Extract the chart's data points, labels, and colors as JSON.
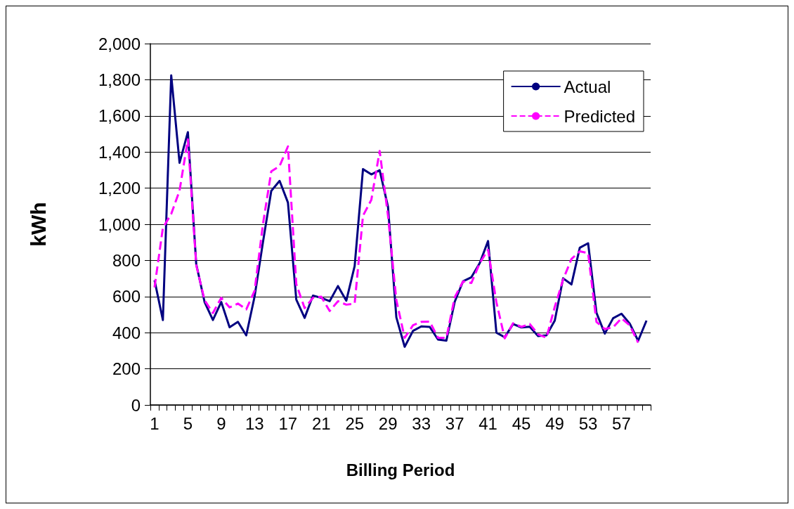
{
  "chart_data": {
    "type": "line",
    "xlabel": "Billing Period",
    "ylabel": "kWh",
    "categories": [
      "1",
      null,
      null,
      null,
      "5",
      null,
      null,
      null,
      "9",
      null,
      null,
      null,
      "13",
      null,
      null,
      null,
      "17",
      null,
      null,
      null,
      "21",
      null,
      null,
      null,
      "25",
      null,
      null,
      null,
      "29",
      null,
      null,
      null,
      "33",
      null,
      null,
      null,
      "37",
      null,
      null,
      null,
      "41",
      null,
      null,
      null,
      "45",
      null,
      null,
      null,
      "49",
      null,
      null,
      null,
      "53",
      null,
      null,
      null,
      "57",
      null,
      null,
      null
    ],
    "series": [
      {
        "name": "Actual",
        "color": "#000080",
        "line_style": "solid",
        "values": [
          690,
          470,
          1824,
          1340,
          1510,
          780,
          570,
          470,
          570,
          430,
          460,
          385,
          600,
          900,
          1185,
          1240,
          1120,
          583,
          482,
          605,
          593,
          574,
          658,
          577,
          769,
          1305,
          1276,
          1299,
          1097,
          485,
          322,
          410,
          435,
          432,
          362,
          356,
          571,
          684,
          707,
          785,
          907,
          400,
          375,
          448,
          429,
          433,
          381,
          385,
          467,
          701,
          667,
          870,
          895,
          510,
          395,
          480,
          505,
          450,
          355,
          467
        ]
      },
      {
        "name": "Predicted",
        "color": "#ff00ff",
        "line_style": "dashed",
        "values": [
          651,
          980,
          1057,
          1186,
          1470,
          774,
          580,
          509,
          593,
          540,
          561,
          529,
          632,
          1000,
          1293,
          1322,
          1431,
          668,
          536,
          593,
          599,
          520,
          574,
          555,
          561,
          1047,
          1135,
          1406,
          1047,
          580,
          372,
          441,
          460,
          461,
          372,
          372,
          596,
          684,
          675,
          785,
          859,
          568,
          369,
          452,
          432,
          448,
          391,
          372,
          543,
          694,
          808,
          850,
          840,
          460,
          420,
          430,
          480,
          440,
          345,
          null
        ]
      }
    ],
    "ylim": [
      0,
      2000
    ],
    "yticks": [
      0,
      200,
      400,
      600,
      800,
      {
        "value": 1000,
        "label": "1,000"
      },
      {
        "value": 1200,
        "label": "1,200"
      },
      {
        "value": 1400,
        "label": "1,400"
      },
      {
        "value": 1600,
        "label": "1,600"
      },
      {
        "value": 1800,
        "label": "1,800"
      },
      {
        "value": 2000,
        "label": "2,000"
      }
    ],
    "grid": "y",
    "legend": "top right",
    "marker": "none"
  }
}
